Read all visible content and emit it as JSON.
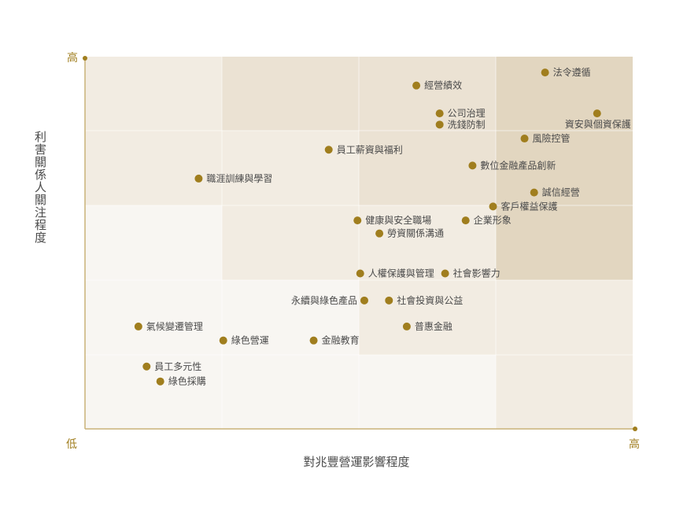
{
  "chart_data": {
    "type": "scatter",
    "xlabel": "對兆豐營運影響程度",
    "ylabel": "利害關係人關注程度",
    "x_low_label": "低",
    "x_high_label": "高",
    "y_high_label": "高",
    "xlim": [
      0,
      4
    ],
    "ylim": [
      0,
      4
    ],
    "grid": true,
    "colors": {
      "point": "#a07e1e",
      "axis": "#c9b278",
      "cell_lightest": "#f8f6f2",
      "cell_light": "#f2ece2",
      "cell_mid": "#ebe2d3",
      "cell_dark": "#e2d6c0"
    },
    "points": [
      {
        "name": "法令遵循",
        "x": 3.36,
        "y": 3.83
      },
      {
        "name": "經營績效",
        "x": 2.42,
        "y": 3.69
      },
      {
        "name": "公司治理",
        "x": 2.59,
        "y": 3.39
      },
      {
        "name": "資安與個資保護",
        "x": 3.74,
        "y": 3.39
      },
      {
        "name": "洗錢防制",
        "x": 2.59,
        "y": 3.27
      },
      {
        "name": "風險控管",
        "x": 3.21,
        "y": 3.12
      },
      {
        "name": "員工薪資與福利",
        "x": 1.78,
        "y": 3.0
      },
      {
        "name": "數位金融產品創新",
        "x": 2.83,
        "y": 2.83
      },
      {
        "name": "職涯訓練與學習",
        "x": 0.83,
        "y": 2.69
      },
      {
        "name": "誠信經營",
        "x": 3.28,
        "y": 2.54
      },
      {
        "name": "客戶權益保護",
        "x": 2.98,
        "y": 2.39
      },
      {
        "name": "健康與安全職場",
        "x": 1.99,
        "y": 2.24
      },
      {
        "name": "企業形象",
        "x": 2.78,
        "y": 2.24
      },
      {
        "name": "勞資關係溝通",
        "x": 2.15,
        "y": 2.1
      },
      {
        "name": "人權保護與管理",
        "x": 2.01,
        "y": 1.67
      },
      {
        "name": "社會影響力",
        "x": 2.63,
        "y": 1.67
      },
      {
        "name": "永續與綠色產品",
        "x": 2.04,
        "y": 1.38
      },
      {
        "name": "社會投資與公益",
        "x": 2.22,
        "y": 1.38
      },
      {
        "name": "氣候變遷管理",
        "x": 0.39,
        "y": 1.1
      },
      {
        "name": "普惠金融",
        "x": 2.35,
        "y": 1.1
      },
      {
        "name": "綠色營運",
        "x": 1.01,
        "y": 0.95
      },
      {
        "name": "金融教育",
        "x": 1.67,
        "y": 0.95
      },
      {
        "name": "員工多元性",
        "x": 0.45,
        "y": 0.67
      },
      {
        "name": "綠色採購",
        "x": 0.55,
        "y": 0.51
      }
    ]
  }
}
